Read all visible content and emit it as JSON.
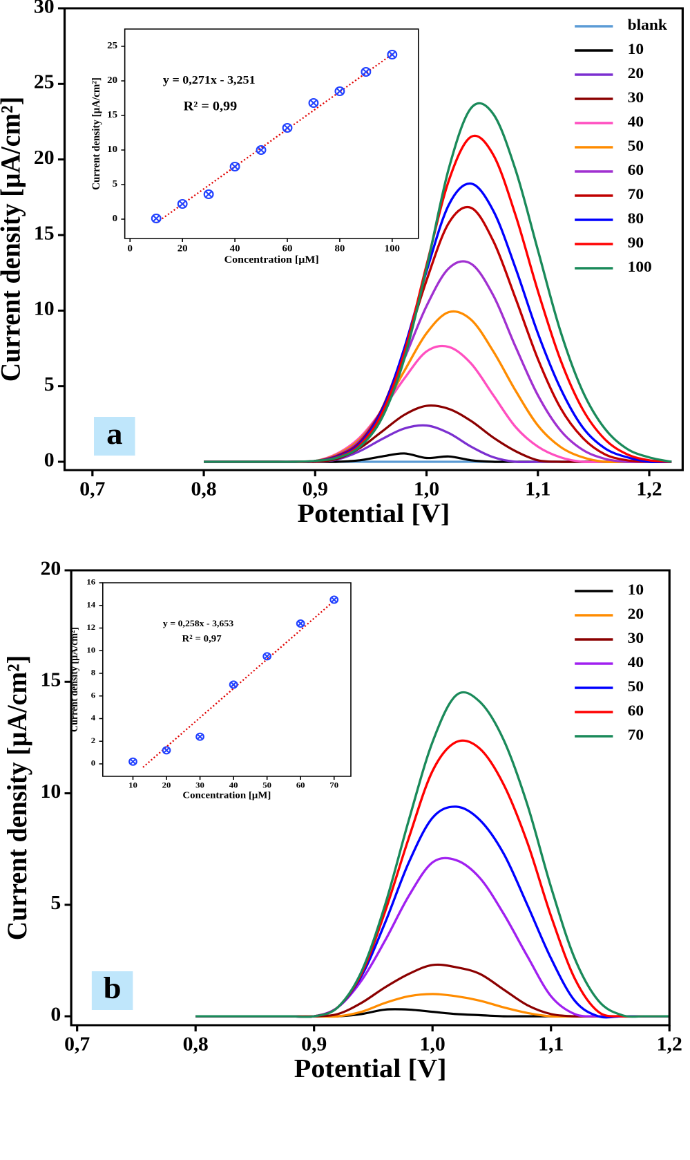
{
  "chart_data": [
    {
      "type": "line",
      "panel_label": "a",
      "xlabel": "Potential [V]",
      "ylabel": "Current density [µA/cm²]",
      "xlim": [
        0.675,
        1.23
      ],
      "ylim": [
        -0.55,
        30
      ],
      "xticks": [
        {
          "value": 0.7,
          "label": "0,7"
        },
        {
          "value": 0.8,
          "label": "0,8"
        },
        {
          "value": 0.9,
          "label": "0,9"
        },
        {
          "value": 1.0,
          "label": "1,0"
        },
        {
          "value": 1.1,
          "label": "1,1"
        },
        {
          "value": 1.2,
          "label": "1,2"
        }
      ],
      "yticks": [
        0,
        5,
        10,
        15,
        20,
        25,
        30
      ],
      "legend": "upper right",
      "x": [
        0.8,
        0.82,
        0.84,
        0.86,
        0.88,
        0.9,
        0.92,
        0.94,
        0.96,
        0.98,
        1.0,
        1.02,
        1.04,
        1.06,
        1.08,
        1.1,
        1.12,
        1.14,
        1.16,
        1.18,
        1.2,
        1.22
      ],
      "series": [
        {
          "name": "blank",
          "color": "#5b9bd5",
          "values": [
            0,
            0,
            0,
            0,
            0,
            0,
            0,
            0,
            0,
            0,
            0,
            0,
            0,
            0,
            0,
            0,
            0,
            0,
            0,
            0,
            0,
            0
          ]
        },
        {
          "name": "10",
          "color": "#000000",
          "values": [
            0,
            0,
            0,
            0,
            0,
            0,
            0,
            0.1,
            0.35,
            0.55,
            0.25,
            0.35,
            0.1,
            0,
            0,
            0,
            0,
            0,
            0,
            0,
            0,
            0
          ]
        },
        {
          "name": "20",
          "color": "#7b2fd0",
          "values": [
            0,
            0,
            0,
            0,
            0,
            0,
            0.15,
            0.7,
            1.5,
            2.2,
            2.4,
            1.9,
            1.0,
            0.3,
            0,
            0,
            0,
            0,
            0,
            0,
            0,
            0
          ]
        },
        {
          "name": "30",
          "color": "#8b0000",
          "values": [
            0,
            0,
            0,
            0,
            0,
            0,
            0.2,
            0.9,
            2.0,
            3.1,
            3.7,
            3.5,
            2.7,
            1.6,
            0.7,
            0.1,
            0,
            0,
            0,
            0,
            0,
            0
          ]
        },
        {
          "name": "40",
          "color": "#ff4fc0",
          "values": [
            0,
            0,
            0,
            0,
            0,
            0.05,
            0.55,
            1.6,
            3.4,
            5.5,
            7.3,
            7.6,
            6.5,
            4.4,
            2.3,
            1.0,
            0.3,
            0,
            0,
            0,
            0,
            0
          ]
        },
        {
          "name": "50",
          "color": "#ff8c00",
          "values": [
            0,
            0,
            0,
            0,
            0,
            0.05,
            0.5,
            1.5,
            3.4,
            6.0,
            8.5,
            9.9,
            9.4,
            7.3,
            4.7,
            2.4,
            1.0,
            0.3,
            0,
            0,
            0,
            0
          ]
        },
        {
          "name": "60",
          "color": "#a030d0",
          "values": [
            0,
            0,
            0,
            0,
            0,
            0.05,
            0.45,
            1.4,
            3.5,
            6.8,
            10.3,
            12.8,
            13.1,
            11.0,
            7.6,
            4.4,
            2.1,
            0.8,
            0.2,
            0,
            0,
            0
          ]
        },
        {
          "name": "70",
          "color": "#c00000",
          "values": [
            0,
            0,
            0,
            0,
            0,
            0.05,
            0.4,
            1.3,
            3.5,
            7.4,
            12.0,
            15.8,
            16.8,
            14.6,
            10.8,
            6.8,
            3.6,
            1.6,
            0.5,
            0.1,
            0,
            0
          ]
        },
        {
          "name": "80",
          "color": "#0000ff",
          "values": [
            0,
            0,
            0,
            0,
            0,
            0.05,
            0.35,
            1.2,
            3.4,
            7.5,
            12.6,
            17.0,
            18.4,
            16.6,
            12.8,
            8.5,
            4.9,
            2.3,
            0.9,
            0.3,
            0,
            0
          ]
        },
        {
          "name": "90",
          "color": "#ff0000",
          "values": [
            0,
            0,
            0,
            0,
            0,
            0.05,
            0.3,
            1.1,
            3.2,
            7.2,
            13.0,
            18.6,
            21.5,
            20.3,
            16.3,
            11.3,
            6.8,
            3.5,
            1.5,
            0.5,
            0.1,
            0
          ]
        },
        {
          "name": "100",
          "color": "#1a8a5a",
          "values": [
            0,
            0,
            0,
            0,
            0,
            0.06,
            0.27,
            0.99,
            2.9,
            6.8,
            12.8,
            19.4,
            23.4,
            23.0,
            19.3,
            14.0,
            8.7,
            4.7,
            2.2,
            0.86,
            0.29,
            0
          ]
        }
      ]
    },
    {
      "type": "scatter",
      "xlabel": "Concentration [µM]",
      "ylabel": "Current density [µA/cm²]",
      "xlim": [
        -2,
        110
      ],
      "ylim": [
        -2.8,
        27.5
      ],
      "xticks": [
        0,
        20,
        40,
        60,
        80,
        100
      ],
      "yticks": [
        0,
        5,
        10,
        15,
        20,
        25
      ],
      "x": [
        10,
        20,
        30,
        40,
        50,
        60,
        70,
        80,
        90,
        100
      ],
      "values": [
        0.1,
        2.2,
        3.6,
        7.6,
        10.0,
        13.2,
        16.8,
        18.5,
        21.3,
        23.8
      ],
      "color": "#2040ff",
      "fit_line": {
        "x": [
          10,
          100
        ],
        "values": [
          -0.54,
          23.85
        ],
        "color": "#e00000"
      },
      "annotations": [
        "y = 0,271x - 3,251",
        "R² = 0,99"
      ]
    },
    {
      "type": "line",
      "panel_label": "b",
      "xlabel": "Potential [V]",
      "ylabel": "Current density [µA/cm²]",
      "xlim": [
        0.695,
        1.2
      ],
      "ylim": [
        -0.4,
        20
      ],
      "xticks": [
        {
          "value": 0.7,
          "label": "0,7"
        },
        {
          "value": 0.8,
          "label": "0,8"
        },
        {
          "value": 0.9,
          "label": "0,9"
        },
        {
          "value": 1.0,
          "label": "1,0"
        },
        {
          "value": 1.1,
          "label": "1,1"
        },
        {
          "value": 1.2,
          "label": "1,2"
        }
      ],
      "yticks": [
        0,
        5,
        10,
        15,
        20
      ],
      "legend": "upper right",
      "x": [
        0.8,
        0.82,
        0.84,
        0.86,
        0.88,
        0.9,
        0.92,
        0.94,
        0.96,
        0.98,
        1.0,
        1.02,
        1.04,
        1.06,
        1.08,
        1.1,
        1.12,
        1.14,
        1.16,
        1.18,
        1.2
      ],
      "series": [
        {
          "name": "10",
          "color": "#000000",
          "values": [
            0,
            0,
            0,
            0,
            0,
            0,
            0,
            0.1,
            0.3,
            0.3,
            0.2,
            0.1,
            0.05,
            0,
            0,
            0,
            0,
            0,
            0,
            0,
            0
          ]
        },
        {
          "name": "20",
          "color": "#ff8c00",
          "values": [
            0,
            0,
            0,
            0,
            0,
            0,
            0,
            0.2,
            0.6,
            0.9,
            1.0,
            0.9,
            0.7,
            0.4,
            0.15,
            0,
            0,
            0,
            0,
            0,
            0
          ]
        },
        {
          "name": "30",
          "color": "#8b0000",
          "values": [
            0,
            0,
            0,
            0,
            0,
            0,
            0.1,
            0.6,
            1.3,
            1.9,
            2.3,
            2.2,
            1.9,
            1.2,
            0.5,
            0.1,
            0,
            0,
            0,
            0,
            0
          ]
        },
        {
          "name": "40",
          "color": "#a020f0",
          "values": [
            0,
            0,
            0,
            0,
            0,
            0,
            0.4,
            1.6,
            3.4,
            5.4,
            6.9,
            7.0,
            6.2,
            4.6,
            2.7,
            0.9,
            0.1,
            0,
            0,
            0,
            0
          ]
        },
        {
          "name": "50",
          "color": "#0000ff",
          "values": [
            0,
            0,
            0,
            0,
            0,
            0,
            0.4,
            1.8,
            4.2,
            6.9,
            8.9,
            9.4,
            8.8,
            7.3,
            5.0,
            2.6,
            0.7,
            0,
            0,
            0,
            0
          ]
        },
        {
          "name": "60",
          "color": "#ff0000",
          "values": [
            0,
            0,
            0,
            0,
            0,
            0,
            0.4,
            1.9,
            4.7,
            8.0,
            11.0,
            12.3,
            12.0,
            10.4,
            7.8,
            4.5,
            1.7,
            0.2,
            0,
            0,
            0
          ]
        },
        {
          "name": "70",
          "color": "#1a8a5a",
          "values": [
            0,
            0,
            0,
            0,
            0,
            0,
            0.4,
            2.0,
            5.0,
            8.8,
            12.3,
            14.4,
            14.1,
            12.4,
            9.5,
            5.8,
            2.6,
            0.7,
            0.05,
            0,
            0
          ]
        }
      ]
    },
    {
      "type": "scatter",
      "xlabel": "Concentration [µM]",
      "ylabel": "Current density [µA/cm²]",
      "xlim": [
        1,
        75
      ],
      "ylim": [
        -1.1,
        16
      ],
      "xticks": [
        10,
        20,
        30,
        40,
        50,
        60,
        70
      ],
      "yticks": [
        0,
        2,
        4,
        6,
        8,
        10,
        12,
        14,
        16
      ],
      "x": [
        10,
        20,
        30,
        40,
        50,
        60,
        70
      ],
      "values": [
        0.2,
        1.2,
        2.4,
        7.0,
        9.5,
        12.4,
        14.5
      ],
      "color": "#2040ff",
      "fit_line": {
        "x": [
          13,
          70
        ],
        "values": [
          -0.3,
          14.4
        ],
        "color": "#e00000"
      },
      "annotations": [
        "y = 0,258x - 3,653",
        "R² = 0,97"
      ]
    }
  ]
}
